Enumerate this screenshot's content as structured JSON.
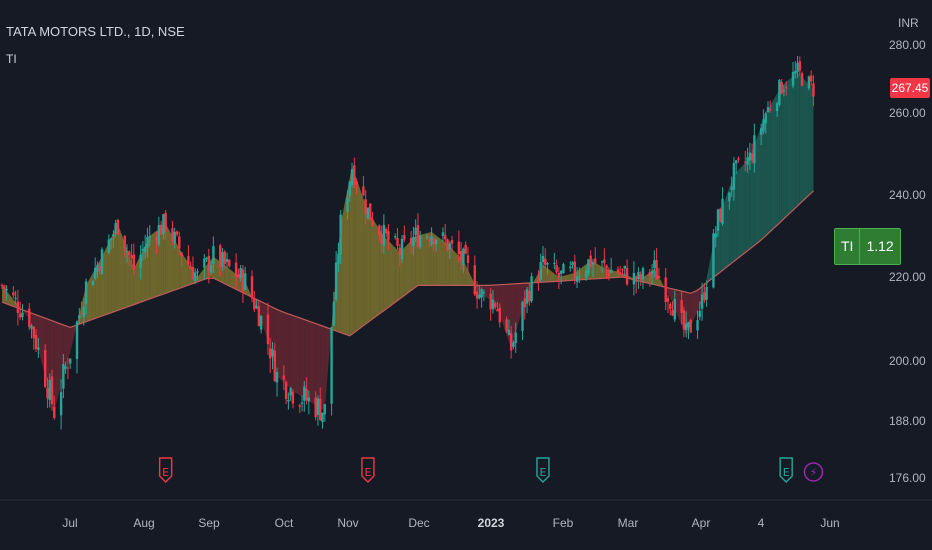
{
  "header": {
    "title": "TATA MOTORS LTD., 1D, NSE",
    "indicator": "TI",
    "currency": "INR"
  },
  "price_tag": {
    "value": "267.45",
    "color": "#f23645"
  },
  "ti_label": {
    "name": "TI",
    "value": "1.12"
  },
  "colors": {
    "background": "#161a25",
    "up": "#26a69a",
    "down": "#f23645",
    "fill_above": "#b5a536",
    "fill_below": "#8e2d3a",
    "fill_strong": "#1f6a5c",
    "ma_line": "#c05a5a",
    "earnings_red": "#f23645",
    "earnings_green": "#26a69a",
    "dividend": "#9c27b0"
  },
  "events": [
    {
      "type": "earnings",
      "label": "E",
      "color": "red",
      "date": "2022-08-12"
    },
    {
      "type": "earnings",
      "label": "E",
      "color": "red",
      "date": "2022-11-09"
    },
    {
      "type": "earnings",
      "label": "E",
      "color": "green",
      "date": "2023-01-25"
    },
    {
      "type": "earnings",
      "label": "E",
      "color": "green",
      "date": "2023-05-12"
    },
    {
      "type": "dividend",
      "label": "⚡",
      "color": "purple",
      "date": "2023-05-24"
    }
  ],
  "chart_data": {
    "type": "candlestick",
    "title": "TATA MOTORS LTD., 1D, NSE",
    "indicator": "TI",
    "y_axis": {
      "unit": "INR",
      "ticks": [
        "280.00",
        "260.00",
        "240.00",
        "220.00",
        "200.00",
        "188.00",
        "176.00"
      ]
    },
    "x_axis": {
      "ticks": [
        "Jul",
        "Aug",
        "Sep",
        "Oct",
        "Nov",
        "Dec",
        "2023",
        "Feb",
        "Mar",
        "Apr",
        "4",
        "Jun"
      ]
    },
    "close_series": {
      "name": "close",
      "dates": [
        "2022-06-01",
        "2022-06-13",
        "2022-06-20",
        "2022-06-24",
        "2022-07-01",
        "2022-07-08",
        "2022-07-15",
        "2022-07-22",
        "2022-07-29",
        "2022-08-05",
        "2022-08-12",
        "2022-08-19",
        "2022-08-26",
        "2022-09-02",
        "2022-09-09",
        "2022-09-16",
        "2022-09-23",
        "2022-09-30",
        "2022-10-07",
        "2022-10-14",
        "2022-10-21",
        "2022-10-28",
        "2022-11-02",
        "2022-11-09",
        "2022-11-16",
        "2022-11-23",
        "2022-11-30",
        "2022-12-07",
        "2022-12-14",
        "2022-12-21",
        "2022-12-28",
        "2023-01-04",
        "2023-01-11",
        "2023-01-18",
        "2023-01-25",
        "2023-02-01",
        "2023-02-08",
        "2023-02-15",
        "2023-02-22",
        "2023-03-01",
        "2023-03-08",
        "2023-03-15",
        "2023-03-22",
        "2023-03-29",
        "2023-04-05",
        "2023-04-12",
        "2023-04-19",
        "2023-04-26",
        "2023-05-03",
        "2023-05-10",
        "2023-05-17",
        "2023-05-24"
      ],
      "values": [
        218,
        210,
        197,
        190,
        202,
        218,
        225,
        233,
        222,
        230,
        233,
        226,
        220,
        225,
        222,
        219,
        210,
        197,
        194,
        192,
        190,
        233,
        247,
        236,
        230,
        226,
        230,
        231,
        228,
        224,
        216,
        214,
        203,
        216,
        223,
        220,
        221,
        224,
        222,
        221,
        219,
        222,
        215,
        206,
        214,
        234,
        245,
        249,
        260,
        268,
        272,
        267
      ]
    },
    "ma_series": {
      "name": "moving average",
      "dates": [
        "2022-06-01",
        "2022-07-01",
        "2022-08-01",
        "2022-09-01",
        "2022-10-01",
        "2022-11-01",
        "2022-12-01",
        "2023-01-01",
        "2023-02-01",
        "2023-03-01",
        "2023-04-01",
        "2023-05-01",
        "2023-05-24"
      ],
      "values": [
        214,
        208,
        214,
        220,
        212,
        206,
        218,
        218,
        219,
        220,
        216,
        229,
        241
      ]
    },
    "grid": false,
    "legend": "none"
  }
}
